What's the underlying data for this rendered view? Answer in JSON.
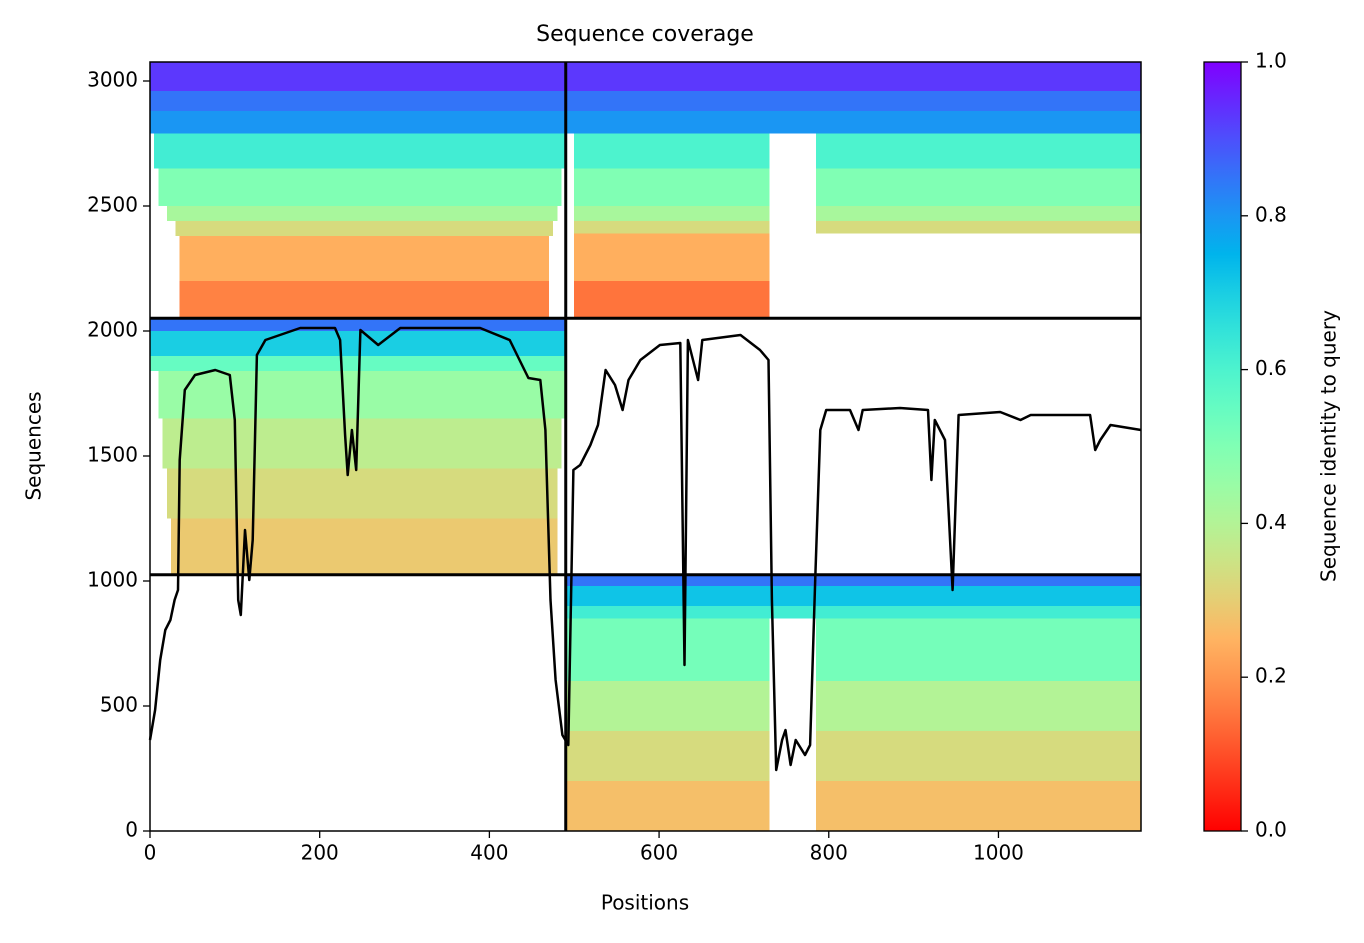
{
  "chart_data": {
    "type": "heatmap",
    "title": "Sequence coverage",
    "xlabel": "Positions",
    "ylabel": "Sequences",
    "xlim": [
      0,
      1168
    ],
    "ylim": [
      0,
      3076
    ],
    "xticks": [
      0,
      200,
      400,
      600,
      800,
      1000
    ],
    "yticks": [
      0,
      500,
      1000,
      1500,
      2000,
      2500,
      3000
    ],
    "colormap": "rainbow_r",
    "bands": [
      {
        "x": [
          0,
          490
        ],
        "y": [
          2960,
          3076
        ],
        "identity": 0.93
      },
      {
        "x": [
          0,
          490
        ],
        "y": [
          2880,
          2960
        ],
        "identity": 0.85
      },
      {
        "x": [
          0,
          490
        ],
        "y": [
          2790,
          2880
        ],
        "identity": 0.8
      },
      {
        "x": [
          5,
          490
        ],
        "y": [
          2650,
          2790
        ],
        "identity": 0.62
      },
      {
        "x": [
          10,
          485
        ],
        "y": [
          2500,
          2650
        ],
        "identity": 0.5
      },
      {
        "x": [
          20,
          480
        ],
        "y": [
          2440,
          2500
        ],
        "identity": 0.42
      },
      {
        "x": [
          30,
          475
        ],
        "y": [
          2380,
          2440
        ],
        "identity": 0.33
      },
      {
        "x": [
          35,
          470
        ],
        "y": [
          2200,
          2380
        ],
        "identity": 0.24
      },
      {
        "x": [
          35,
          470
        ],
        "y": [
          2051,
          2200
        ],
        "identity": 0.17
      },
      {
        "x": [
          490,
          1168
        ],
        "y": [
          2960,
          3076
        ],
        "identity": 0.93
      },
      {
        "x": [
          490,
          1168
        ],
        "y": [
          2880,
          2960
        ],
        "identity": 0.85
      },
      {
        "x": [
          490,
          1168
        ],
        "y": [
          2790,
          2880
        ],
        "identity": 0.8
      },
      {
        "x": [
          500,
          730
        ],
        "y": [
          2650,
          2790
        ],
        "identity": 0.6
      },
      {
        "x": [
          785,
          1168
        ],
        "y": [
          2650,
          2790
        ],
        "identity": 0.6
      },
      {
        "x": [
          500,
          730
        ],
        "y": [
          2500,
          2650
        ],
        "identity": 0.5
      },
      {
        "x": [
          785,
          1168
        ],
        "y": [
          2500,
          2650
        ],
        "identity": 0.5
      },
      {
        "x": [
          500,
          730
        ],
        "y": [
          2440,
          2500
        ],
        "identity": 0.42
      },
      {
        "x": [
          785,
          1168
        ],
        "y": [
          2440,
          2500
        ],
        "identity": 0.42
      },
      {
        "x": [
          500,
          730
        ],
        "y": [
          2390,
          2440
        ],
        "identity": 0.33
      },
      {
        "x": [
          785,
          1168
        ],
        "y": [
          2390,
          2440
        ],
        "identity": 0.33
      },
      {
        "x": [
          500,
          730
        ],
        "y": [
          2200,
          2390
        ],
        "identity": 0.24
      },
      {
        "x": [
          500,
          730
        ],
        "y": [
          2051,
          2200
        ],
        "identity": 0.15
      },
      {
        "x": [
          0,
          490
        ],
        "y": [
          2000,
          2051
        ],
        "identity": 0.85
      },
      {
        "x": [
          0,
          490
        ],
        "y": [
          1900,
          2000
        ],
        "identity": 0.7
      },
      {
        "x": [
          0,
          490
        ],
        "y": [
          1840,
          1900
        ],
        "identity": 0.55
      },
      {
        "x": [
          10,
          490
        ],
        "y": [
          1650,
          1840
        ],
        "identity": 0.45
      },
      {
        "x": [
          15,
          485
        ],
        "y": [
          1450,
          1650
        ],
        "identity": 0.38
      },
      {
        "x": [
          20,
          480
        ],
        "y": [
          1250,
          1450
        ],
        "identity": 0.33
      },
      {
        "x": [
          25,
          480
        ],
        "y": [
          1025,
          1250
        ],
        "identity": 0.29
      },
      {
        "x": [
          490,
          1168
        ],
        "y": [
          980,
          1025
        ],
        "identity": 0.85
      },
      {
        "x": [
          490,
          1168
        ],
        "y": [
          900,
          980
        ],
        "identity": 0.72
      },
      {
        "x": [
          490,
          1168
        ],
        "y": [
          850,
          900
        ],
        "identity": 0.62
      },
      {
        "x": [
          490,
          730
        ],
        "y": [
          600,
          850
        ],
        "identity": 0.52
      },
      {
        "x": [
          785,
          1168
        ],
        "y": [
          600,
          850
        ],
        "identity": 0.52
      },
      {
        "x": [
          490,
          730
        ],
        "y": [
          400,
          600
        ],
        "identity": 0.4
      },
      {
        "x": [
          785,
          1168
        ],
        "y": [
          400,
          600
        ],
        "identity": 0.4
      },
      {
        "x": [
          490,
          730
        ],
        "y": [
          200,
          400
        ],
        "identity": 0.33
      },
      {
        "x": [
          785,
          1168
        ],
        "y": [
          200,
          400
        ],
        "identity": 0.33
      },
      {
        "x": [
          490,
          730
        ],
        "y": [
          0,
          200
        ],
        "identity": 0.27
      },
      {
        "x": [
          785,
          1168
        ],
        "y": [
          0,
          200
        ],
        "identity": 0.27
      }
    ],
    "dividers": {
      "x": [
        490
      ],
      "y": [
        1025,
        2051
      ]
    },
    "line": {
      "color": "#000000",
      "x": [
        0,
        6,
        12,
        18,
        24,
        29,
        33,
        35,
        41,
        53,
        77,
        94,
        100,
        104,
        107,
        112,
        117,
        121,
        126,
        136,
        177,
        218,
        224,
        230,
        233,
        238,
        243,
        248,
        269,
        295,
        389,
        424,
        446,
        460,
        466,
        472,
        478,
        486,
        493,
        499,
        507,
        519,
        528,
        537,
        548,
        557,
        564,
        578,
        601,
        625,
        630,
        634,
        646,
        651,
        696,
        719,
        729,
        733,
        738,
        745,
        749,
        755,
        761,
        772,
        778,
        784,
        790,
        797,
        825,
        835,
        840,
        884,
        917,
        921,
        925,
        937,
        946,
        953,
        1002,
        1026,
        1038,
        1108,
        1114,
        1120,
        1132,
        1168
      ],
      "values": [
        364,
        484,
        684,
        804,
        844,
        924,
        964,
        1484,
        1764,
        1824,
        1844,
        1824,
        1644,
        924,
        864,
        1204,
        1004,
        1164,
        1904,
        1964,
        2012,
        2012,
        1964,
        1584,
        1424,
        1604,
        1444,
        2004,
        1944,
        2012,
        2012,
        1964,
        1812,
        1804,
        1604,
        924,
        604,
        384,
        344,
        1444,
        1464,
        1544,
        1624,
        1844,
        1784,
        1684,
        1804,
        1884,
        1944,
        1952,
        664,
        1964,
        1804,
        1964,
        1984,
        1924,
        1884,
        924,
        244,
        364,
        404,
        264,
        364,
        304,
        344,
        1004,
        1604,
        1684,
        1684,
        1604,
        1684,
        1692,
        1684,
        1404,
        1644,
        1564,
        964,
        1664,
        1676,
        1644,
        1664,
        1664,
        1524,
        1564,
        1624,
        1604
      ]
    },
    "colorbar": {
      "label": "Sequence identity to query",
      "lim": [
        0,
        1
      ],
      "ticks": [
        {
          "value": 0,
          "label": "0.0"
        },
        0.2,
        0.4,
        0.6,
        0.8,
        {
          "value": 1,
          "label": "1.0"
        }
      ]
    }
  }
}
